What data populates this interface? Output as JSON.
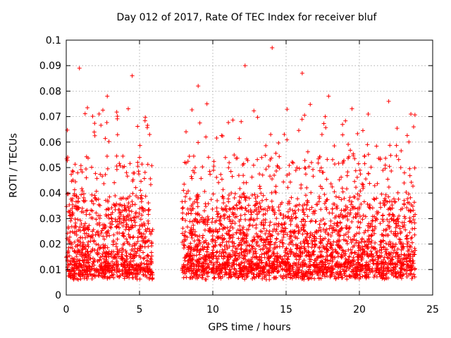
{
  "chart_data": {
    "type": "scatter",
    "title": "Day 012 of 2017, Rate Of TEC Index for receiver bluf",
    "xlabel": "GPS time / hours",
    "ylabel": "ROTI / TECUs",
    "xlim": [
      0,
      25
    ],
    "ylim": [
      0,
      0.1
    ],
    "xticks": [
      "0",
      "5",
      "10",
      "15",
      "20",
      "25"
    ],
    "yticks": [
      "0",
      "0.01",
      "0.02",
      "0.03",
      "0.04",
      "0.05",
      "0.06",
      "0.07",
      "0.08",
      "0.09",
      "0.1"
    ],
    "grid": true,
    "marker": "+",
    "color": "#ff0000",
    "data_gap_hours": [
      5.9,
      7.9
    ],
    "notable_points": [
      {
        "x": 14.05,
        "y": 0.097
      },
      {
        "x": 0.9,
        "y": 0.089
      },
      {
        "x": 12.2,
        "y": 0.09
      },
      {
        "x": 16.1,
        "y": 0.087
      },
      {
        "x": 4.5,
        "y": 0.086
      },
      {
        "x": 9.0,
        "y": 0.082
      },
      {
        "x": 17.9,
        "y": 0.078
      },
      {
        "x": 2.8,
        "y": 0.078
      },
      {
        "x": 22.0,
        "y": 0.076
      },
      {
        "x": 9.6,
        "y": 0.075
      },
      {
        "x": 20.6,
        "y": 0.071
      },
      {
        "x": 23.7,
        "y": 0.066
      }
    ]
  }
}
